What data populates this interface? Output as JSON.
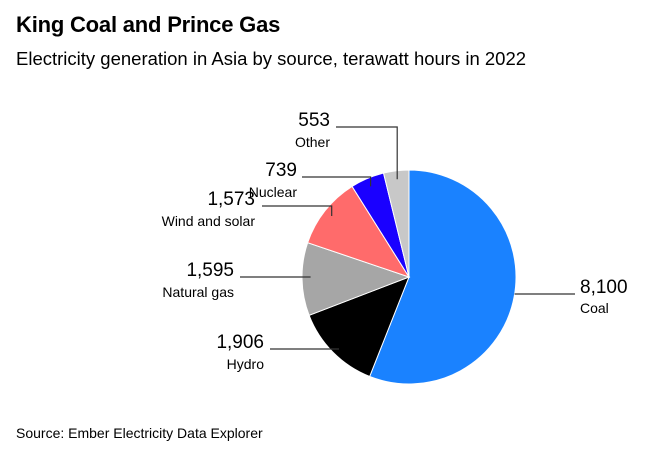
{
  "chart_data": {
    "type": "pie",
    "title": "King Coal and Prince Gas",
    "subtitle": "Electricity generation in Asia by source, terawatt hours in 2022",
    "unit": "terawatt hours",
    "start": "top, clockwise",
    "slices": [
      {
        "label": "Coal",
        "value": 8100,
        "value_label": "8,100",
        "color": "#1a82ff"
      },
      {
        "label": "Hydro",
        "value": 1906,
        "value_label": "1,906",
        "color": "#000000"
      },
      {
        "label": "Natural gas",
        "value": 1595,
        "value_label": "1,595",
        "color": "#a6a6a6"
      },
      {
        "label": "Wind and solar",
        "value": 1573,
        "value_label": "1,573",
        "color": "#ff6b6b"
      },
      {
        "label": "Nuclear",
        "value": 739,
        "value_label": "739",
        "color": "#1a00ff"
      },
      {
        "label": "Other",
        "value": 553,
        "value_label": "553",
        "color": "#c8c8c8"
      }
    ]
  },
  "source": "Source: Ember Electricity Data Explorer"
}
